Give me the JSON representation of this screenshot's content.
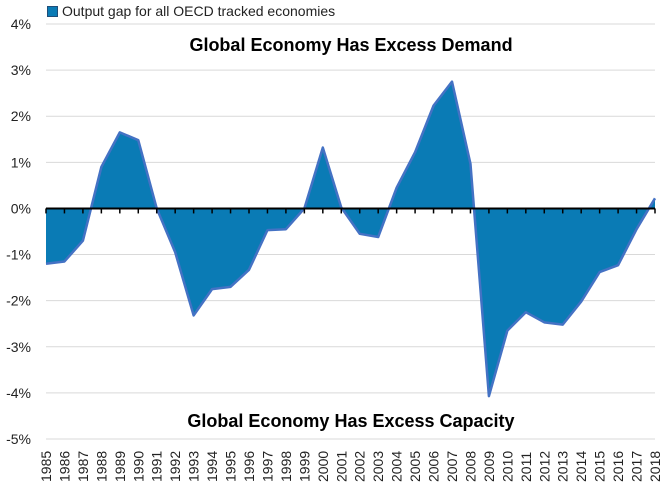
{
  "chart_data": {
    "type": "area",
    "legend": {
      "placement": "top-left",
      "label": "Output gap for all OECD tracked economies"
    },
    "annotations": {
      "top": "Global Economy Has Excess Demand",
      "bottom": "Global Economy Has Excess Capacity"
    },
    "ylim": [
      -5,
      4
    ],
    "yticks": [
      4,
      3,
      2,
      1,
      0,
      -1,
      -2,
      -3,
      -4,
      -5
    ],
    "ytick_labels": [
      "4%",
      "3%",
      "2%",
      "1%",
      "0%",
      "-1%",
      "-2%",
      "-3%",
      "-4%",
      "-5%"
    ],
    "grid": true,
    "categories": [
      "1985",
      "1986",
      "1987",
      "1988",
      "1989",
      "1990",
      "1991",
      "1992",
      "1993",
      "1994",
      "1995",
      "1996",
      "1997",
      "1998",
      "1999",
      "2000",
      "2001",
      "2002",
      "2003",
      "2004",
      "2005",
      "2006",
      "2007",
      "2008",
      "2009",
      "2010",
      "2011",
      "2012",
      "2013",
      "2014",
      "2015",
      "2016",
      "2017",
      "2018"
    ],
    "series": [
      {
        "name": "Output gap for all OECD tracked economies",
        "values": [
          -1.2,
          -1.15,
          -0.7,
          0.9,
          1.65,
          1.48,
          0.0,
          -0.95,
          -2.32,
          -1.75,
          -1.7,
          -1.33,
          -0.47,
          -0.45,
          0.0,
          1.32,
          0.02,
          -0.55,
          -0.62,
          0.45,
          1.22,
          2.23,
          2.75,
          0.97,
          -4.07,
          -2.65,
          -2.25,
          -2.47,
          -2.52,
          -2.02,
          -1.38,
          -1.23,
          -0.45,
          0.22
        ]
      }
    ],
    "colors": {
      "fill": "#0a7bb5",
      "line": "#4472c4",
      "axis": "#000000",
      "grid": "#d9d9d9"
    }
  }
}
